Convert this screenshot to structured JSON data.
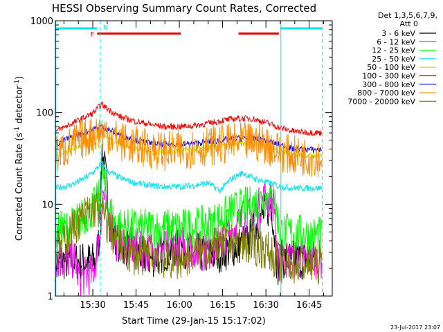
{
  "chart_data": {
    "type": "line",
    "title": "HESSI Observing Summary Count Rates, Corrected",
    "xlabel": "Start Time (29-Jan-15 15:17:02)",
    "ylabel_main": "Corrected Count Rate (s",
    "ylabel_sup1": "-1",
    "ylabel_mid": " detector",
    "ylabel_sup2": "-1",
    "ylabel_end": ")",
    "y_scale": "log",
    "ylim": [
      1,
      1000
    ],
    "x_range_minutes": [
      "15:17:02",
      "16:53:00"
    ],
    "y_ticks": [
      "1",
      "10",
      "100",
      "1000"
    ],
    "x_ticks": [
      "15:30",
      "15:45",
      "16:00",
      "16:15",
      "16:30",
      "16:45"
    ],
    "x_tick_minutes": [
      30,
      45,
      60,
      75,
      90,
      105
    ],
    "legend_header": [
      "Det 1,3,5,6,7,9,",
      "Att 0"
    ],
    "legend_placement": "right",
    "timestamp": "23-Jul-2017 23:07",
    "flags": {
      "F_label": "F",
      "N_label": "N",
      "F_color": "#e00000",
      "N_color": "#00e5ee",
      "F_bars_minutes": [
        [
          31.5,
          60.5
        ],
        [
          80.5,
          94.5
        ]
      ],
      "N_bars_minutes": [
        [
          17,
          31.5
        ],
        [
          95,
          109.5
        ]
      ]
    },
    "vlines": {
      "solid_minutes": [
        17.2,
        95.2
      ],
      "dashed_minutes": [
        32.6,
        109.5
      ],
      "color": "#00e5ee"
    },
    "series": [
      {
        "name": "3 - 6 keV",
        "color": "#000000",
        "values": [
          [
            17,
            2.4
          ],
          [
            31,
            2.4
          ],
          [
            32.5,
            5
          ],
          [
            33.2,
            40
          ],
          [
            34.5,
            20
          ],
          [
            36,
            6
          ],
          [
            38,
            4
          ],
          [
            41,
            3.5
          ],
          [
            45,
            3
          ],
          [
            50,
            2.5
          ],
          [
            55,
            3
          ],
          [
            60,
            3.5
          ],
          [
            65,
            3
          ],
          [
            70,
            2.8
          ],
          [
            75,
            3
          ],
          [
            80,
            3.5
          ],
          [
            84,
            4
          ],
          [
            88,
            7
          ],
          [
            92,
            10
          ],
          [
            94,
            2
          ],
          [
            95,
            2.5
          ],
          [
            109.5,
            2.5
          ]
        ]
      },
      {
        "name": "6 - 12 keV",
        "color": "#ff00ff",
        "values": [
          [
            17,
            2.5
          ],
          [
            24,
            2.5
          ],
          [
            25,
            1.6
          ],
          [
            30,
            1.7
          ],
          [
            31,
            2.5
          ],
          [
            32.5,
            5
          ],
          [
            33.5,
            14
          ],
          [
            35,
            8
          ],
          [
            38,
            4
          ],
          [
            42,
            3.5
          ],
          [
            48,
            3
          ],
          [
            55,
            3.5
          ],
          [
            60,
            3.5
          ],
          [
            70,
            3
          ],
          [
            80,
            6
          ],
          [
            86,
            8
          ],
          [
            90,
            12
          ],
          [
            93,
            10
          ],
          [
            94,
            2
          ],
          [
            95,
            2.5
          ],
          [
            109.5,
            2.5
          ]
        ]
      },
      {
        "name": "12 - 25 keV",
        "color": "#00ff00",
        "values": [
          [
            17,
            5
          ],
          [
            22,
            5.5
          ],
          [
            26,
            7
          ],
          [
            30,
            9
          ],
          [
            32.5,
            12
          ],
          [
            33.5,
            22
          ],
          [
            35,
            10
          ],
          [
            38,
            6
          ],
          [
            42,
            5.5
          ],
          [
            50,
            5.5
          ],
          [
            60,
            5.5
          ],
          [
            70,
            6
          ],
          [
            76,
            7.5
          ],
          [
            80,
            9
          ],
          [
            86,
            10
          ],
          [
            90,
            12
          ],
          [
            93,
            11
          ],
          [
            95,
            5
          ],
          [
            109.5,
            4.5
          ]
        ]
      },
      {
        "name": "25 - 50 keV",
        "color": "#00e5ee",
        "values": [
          [
            17,
            15
          ],
          [
            22,
            16
          ],
          [
            27,
            19
          ],
          [
            30,
            22
          ],
          [
            33,
            28
          ],
          [
            35,
            23
          ],
          [
            40,
            19
          ],
          [
            45,
            17
          ],
          [
            50,
            16
          ],
          [
            55,
            15.5
          ],
          [
            60,
            15.5
          ],
          [
            65,
            16
          ],
          [
            70,
            17
          ],
          [
            74,
            14
          ],
          [
            78,
            19
          ],
          [
            82,
            22
          ],
          [
            86,
            19
          ],
          [
            90,
            17.5
          ],
          [
            95,
            15.5
          ],
          [
            100,
            15
          ],
          [
            109.5,
            15
          ]
        ]
      },
      {
        "name": "50 - 100 keV",
        "color": "#d4d400",
        "values": [
          [
            17,
            32
          ],
          [
            22,
            38
          ],
          [
            27,
            46
          ],
          [
            30,
            52
          ],
          [
            33,
            58
          ],
          [
            36,
            52
          ],
          [
            40,
            44
          ],
          [
            45,
            40
          ],
          [
            50,
            37
          ],
          [
            55,
            37
          ],
          [
            60,
            38
          ],
          [
            65,
            40
          ],
          [
            70,
            42
          ],
          [
            75,
            43
          ],
          [
            80,
            45
          ],
          [
            85,
            46
          ],
          [
            90,
            44
          ],
          [
            95,
            38
          ],
          [
            100,
            35
          ],
          [
            109.5,
            34
          ]
        ]
      },
      {
        "name": "100 - 300 keV",
        "color": "#ff0000",
        "values": [
          [
            17,
            62
          ],
          [
            22,
            74
          ],
          [
            27,
            88
          ],
          [
            30,
            98
          ],
          [
            33,
            122
          ],
          [
            36,
            105
          ],
          [
            40,
            88
          ],
          [
            45,
            80
          ],
          [
            50,
            74
          ],
          [
            55,
            70
          ],
          [
            60,
            70
          ],
          [
            65,
            72
          ],
          [
            70,
            76
          ],
          [
            75,
            82
          ],
          [
            80,
            86
          ],
          [
            85,
            86
          ],
          [
            90,
            78
          ],
          [
            95,
            68
          ],
          [
            100,
            62
          ],
          [
            109.5,
            60
          ]
        ]
      },
      {
        "name": "300 - 800 keV",
        "color": "#0000ff",
        "values": [
          [
            17,
            45
          ],
          [
            22,
            53
          ],
          [
            27,
            60
          ],
          [
            30,
            65
          ],
          [
            33,
            70
          ],
          [
            36,
            64
          ],
          [
            40,
            56
          ],
          [
            45,
            50
          ],
          [
            50,
            46
          ],
          [
            55,
            45
          ],
          [
            60,
            45
          ],
          [
            65,
            46
          ],
          [
            70,
            48
          ],
          [
            75,
            50
          ],
          [
            80,
            52
          ],
          [
            85,
            52
          ],
          [
            90,
            50
          ],
          [
            95,
            44
          ],
          [
            100,
            40
          ],
          [
            109.5,
            39
          ]
        ]
      },
      {
        "name": "800 - 7000 keV",
        "color": "#ff8c00",
        "values": [
          [
            17,
            34
          ],
          [
            22,
            43
          ],
          [
            27,
            52
          ],
          [
            30,
            58
          ],
          [
            33,
            63
          ],
          [
            36,
            57
          ],
          [
            40,
            48
          ],
          [
            45,
            43
          ],
          [
            50,
            40
          ],
          [
            55,
            38
          ],
          [
            60,
            39
          ],
          [
            65,
            41
          ],
          [
            70,
            43
          ],
          [
            75,
            45
          ],
          [
            80,
            47
          ],
          [
            85,
            48
          ],
          [
            90,
            45
          ],
          [
            95,
            37
          ],
          [
            100,
            34
          ],
          [
            109.5,
            32
          ]
        ]
      },
      {
        "name": "7000 - 20000 keV",
        "color": "#808000",
        "values": [
          [
            17,
            3
          ],
          [
            20,
            4
          ],
          [
            24,
            6
          ],
          [
            28,
            8
          ],
          [
            31,
            9
          ],
          [
            33,
            8.5
          ],
          [
            35,
            6
          ],
          [
            38,
            4
          ],
          [
            42,
            3
          ],
          [
            46,
            2.6
          ],
          [
            50,
            3
          ],
          [
            55,
            2.5
          ],
          [
            60,
            2.4
          ],
          [
            65,
            3
          ],
          [
            70,
            3.2
          ],
          [
            75,
            3.5
          ],
          [
            80,
            3.8
          ],
          [
            85,
            3.5
          ],
          [
            90,
            3.2
          ],
          [
            94,
            2.5
          ],
          [
            95,
            2.2
          ],
          [
            100,
            2.2
          ],
          [
            109.5,
            2.2
          ]
        ]
      }
    ]
  }
}
